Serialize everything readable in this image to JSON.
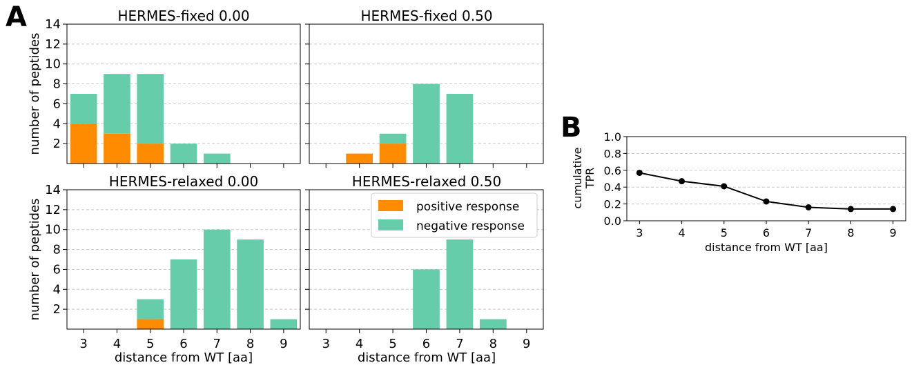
{
  "panel_labels": {
    "a": "A",
    "b": "B"
  },
  "colors": {
    "positive": "#ff8c00",
    "negative": "#66cdaa",
    "line": "#000000"
  },
  "legend": {
    "positive": "positive response",
    "negative": "negative response"
  },
  "chart_data": [
    {
      "type": "bar",
      "title": "HERMES-fixed 0.00",
      "categories": [
        "3",
        "4",
        "5",
        "6",
        "7",
        "8",
        "9"
      ],
      "series": [
        {
          "name": "positive response",
          "values": [
            4,
            3,
            2,
            0,
            0,
            0,
            0
          ]
        },
        {
          "name": "negative response",
          "values": [
            3,
            6,
            7,
            2,
            1,
            0,
            0
          ]
        }
      ],
      "ylim": [
        0,
        14
      ],
      "yticks": [
        "2",
        "4",
        "6",
        "8",
        "10",
        "12",
        "14"
      ],
      "ylabel": "number of peptides",
      "xlabel": "",
      "stacked": true,
      "grid": true
    },
    {
      "type": "bar",
      "title": "HERMES-fixed 0.50",
      "categories": [
        "3",
        "4",
        "5",
        "6",
        "7",
        "8",
        "9"
      ],
      "series": [
        {
          "name": "positive response",
          "values": [
            0,
            1,
            2,
            0,
            0,
            0,
            0
          ]
        },
        {
          "name": "negative response",
          "values": [
            0,
            0,
            1,
            8,
            7,
            0,
            0
          ]
        }
      ],
      "ylim": [
        0,
        14
      ],
      "ylabel": "",
      "xlabel": "",
      "stacked": true,
      "grid": true
    },
    {
      "type": "bar",
      "title": "HERMES-relaxed 0.00",
      "categories": [
        "3",
        "4",
        "5",
        "6",
        "7",
        "8",
        "9"
      ],
      "series": [
        {
          "name": "positive response",
          "values": [
            0,
            0,
            1,
            0,
            0,
            0,
            0
          ]
        },
        {
          "name": "negative response",
          "values": [
            0,
            0,
            2,
            7,
            10,
            9,
            1
          ]
        }
      ],
      "ylim": [
        0,
        14
      ],
      "yticks": [
        "2",
        "4",
        "6",
        "8",
        "10",
        "12",
        "14"
      ],
      "ylabel": "number of peptides",
      "xlabel": "distance from WT [aa]",
      "stacked": true,
      "grid": true
    },
    {
      "type": "bar",
      "title": "HERMES-relaxed 0.50",
      "categories": [
        "3",
        "4",
        "5",
        "6",
        "7",
        "8",
        "9"
      ],
      "series": [
        {
          "name": "positive response",
          "values": [
            0,
            0,
            0,
            0,
            0,
            0,
            0
          ]
        },
        {
          "name": "negative response",
          "values": [
            0,
            0,
            0,
            6,
            9,
            1,
            0
          ]
        }
      ],
      "ylim": [
        0,
        14
      ],
      "ylabel": "",
      "xlabel": "distance from WT [aa]",
      "stacked": true,
      "grid": true,
      "legend_position": "top-right"
    },
    {
      "type": "line",
      "title": "",
      "x": [
        3,
        4,
        5,
        6,
        7,
        8,
        9
      ],
      "y": [
        0.57,
        0.47,
        0.41,
        0.23,
        0.16,
        0.14,
        0.14
      ],
      "xticks": [
        "3",
        "4",
        "5",
        "6",
        "7",
        "8",
        "9"
      ],
      "yticks": [
        "0.0",
        "0.2",
        "0.4",
        "0.6",
        "0.8",
        "1.0"
      ],
      "ylim": [
        0,
        1.0
      ],
      "ylabel_lines": [
        "cumulative",
        "TPR"
      ],
      "xlabel": "distance from WT [aa]",
      "grid": true
    }
  ]
}
